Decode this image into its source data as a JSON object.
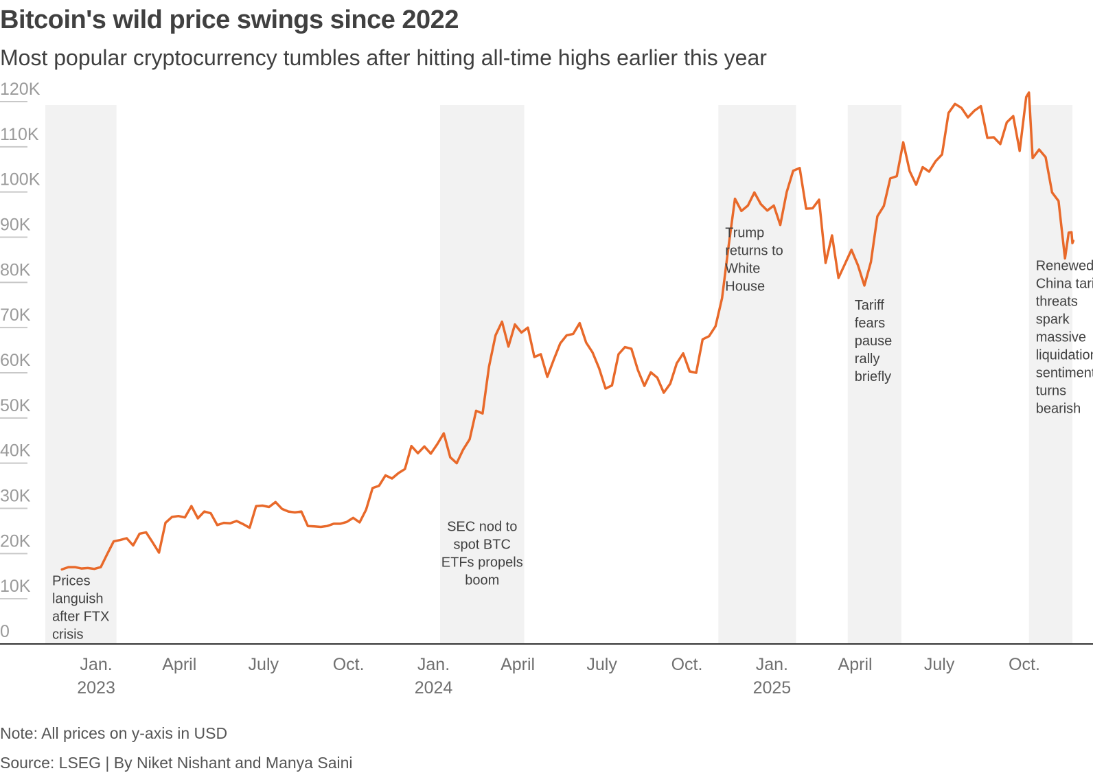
{
  "title": "Bitcoin's wild price swings since 2022",
  "subtitle": "Most popular cryptocurrency tumbles after hitting all-time highs earlier this year",
  "note": "Note: All prices on y-axis in USD",
  "source": "Source: LSEG  | By Niket Nishant and Manya Saini",
  "colors": {
    "line": "#e8692a",
    "band": "#f2f2f2",
    "axis": "#333333",
    "grid_tick": "#c8c8c8"
  },
  "chart_data": {
    "type": "line",
    "title": "Bitcoin's wild price swings since 2022",
    "xlabel": "",
    "ylabel": "",
    "ylim": [
      0,
      120000
    ],
    "xlim": [
      "2022-11-07",
      "2025-11-22"
    ],
    "y_ticks": [
      "0",
      "10K",
      "20K",
      "30K",
      "40K",
      "50K",
      "60K",
      "70K",
      "80K",
      "90K",
      "100K",
      "110K",
      "120K"
    ],
    "y_tick_values": [
      0,
      10000,
      20000,
      30000,
      40000,
      50000,
      60000,
      70000,
      80000,
      90000,
      100000,
      110000,
      120000
    ],
    "x_ticks": [
      {
        "date": "2023-01-01",
        "label": "Jan.",
        "year": "2023"
      },
      {
        "date": "2023-04-01",
        "label": "April",
        "year": ""
      },
      {
        "date": "2023-07-01",
        "label": "July",
        "year": ""
      },
      {
        "date": "2023-10-01",
        "label": "Oct.",
        "year": ""
      },
      {
        "date": "2024-01-01",
        "label": "Jan.",
        "year": "2024"
      },
      {
        "date": "2024-04-01",
        "label": "April",
        "year": ""
      },
      {
        "date": "2024-07-01",
        "label": "July",
        "year": ""
      },
      {
        "date": "2024-10-01",
        "label": "Oct.",
        "year": ""
      },
      {
        "date": "2025-01-01",
        "label": "Jan.",
        "year": "2025"
      },
      {
        "date": "2025-04-01",
        "label": "April",
        "year": ""
      },
      {
        "date": "2025-07-01",
        "label": "July",
        "year": ""
      },
      {
        "date": "2025-10-01",
        "label": "Oct.",
        "year": ""
      }
    ],
    "bands": [
      {
        "start": "2022-11-07",
        "end": "2023-01-23",
        "annotation": [
          "Prices",
          "languish",
          "after FTX",
          "crisis"
        ],
        "align": "start",
        "text_top_value": 13000
      },
      {
        "start": "2024-01-08",
        "end": "2024-04-08",
        "annotation": [
          "SEC nod to",
          "spot BTC",
          "ETFs propels",
          "boom"
        ],
        "align": "middle",
        "text_top_value": 25000
      },
      {
        "start": "2024-11-04",
        "end": "2025-01-27",
        "annotation": [
          "Trump",
          "returns to",
          "White",
          "House"
        ],
        "align": "start",
        "text_top_value": 90000
      },
      {
        "start": "2025-03-24",
        "end": "2025-05-21",
        "annotation": [
          "Tariff",
          "fears",
          "pause",
          "rally",
          "briefly"
        ],
        "align": "start",
        "text_top_value": 74000
      },
      {
        "start": "2025-10-06",
        "end": "2025-11-22",
        "annotation": [
          "Renewed",
          "China tariff",
          "threats",
          "spark",
          "massive",
          "liquidation,",
          "sentiment",
          "turns",
          "bearish"
        ],
        "align": "start",
        "text_top_value": 82700
      }
    ],
    "series": [
      {
        "points": [
          [
            "2022-11-25",
            16500
          ],
          [
            "2022-12-02",
            17000
          ],
          [
            "2022-12-09",
            17000
          ],
          [
            "2022-12-16",
            16700
          ],
          [
            "2022-12-23",
            16800
          ],
          [
            "2022-12-30",
            16600
          ],
          [
            "2023-01-06",
            17000
          ],
          [
            "2023-01-13",
            19900
          ],
          [
            "2023-01-20",
            22700
          ],
          [
            "2023-01-27",
            23000
          ],
          [
            "2023-02-03",
            23400
          ],
          [
            "2023-02-10",
            21800
          ],
          [
            "2023-02-17",
            24400
          ],
          [
            "2023-02-24",
            24700
          ],
          [
            "2023-03-03",
            22500
          ],
          [
            "2023-03-10",
            20200
          ],
          [
            "2023-03-17",
            26800
          ],
          [
            "2023-03-24",
            28100
          ],
          [
            "2023-03-31",
            28300
          ],
          [
            "2023-04-07",
            28000
          ],
          [
            "2023-04-14",
            30500
          ],
          [
            "2023-04-21",
            27800
          ],
          [
            "2023-04-28",
            29300
          ],
          [
            "2023-05-05",
            28900
          ],
          [
            "2023-05-12",
            26300
          ],
          [
            "2023-05-19",
            26800
          ],
          [
            "2023-05-26",
            26700
          ],
          [
            "2023-06-02",
            27200
          ],
          [
            "2023-06-09",
            26500
          ],
          [
            "2023-06-16",
            25700
          ],
          [
            "2023-06-23",
            30500
          ],
          [
            "2023-06-30",
            30600
          ],
          [
            "2023-07-07",
            30300
          ],
          [
            "2023-07-14",
            31400
          ],
          [
            "2023-07-21",
            29900
          ],
          [
            "2023-07-28",
            29300
          ],
          [
            "2023-08-04",
            29100
          ],
          [
            "2023-08-11",
            29300
          ],
          [
            "2023-08-18",
            26100
          ],
          [
            "2023-08-25",
            26000
          ],
          [
            "2023-09-01",
            25900
          ],
          [
            "2023-09-08",
            26100
          ],
          [
            "2023-09-15",
            26600
          ],
          [
            "2023-09-22",
            26600
          ],
          [
            "2023-09-29",
            27000
          ],
          [
            "2023-10-06",
            27900
          ],
          [
            "2023-10-13",
            26900
          ],
          [
            "2023-10-20",
            29700
          ],
          [
            "2023-10-27",
            34500
          ],
          [
            "2023-11-03",
            35000
          ],
          [
            "2023-11-10",
            37300
          ],
          [
            "2023-11-17",
            36600
          ],
          [
            "2023-11-24",
            37800
          ],
          [
            "2023-12-01",
            38700
          ],
          [
            "2023-12-08",
            43800
          ],
          [
            "2023-12-15",
            42200
          ],
          [
            "2023-12-22",
            43700
          ],
          [
            "2023-12-29",
            42100
          ],
          [
            "2024-01-05",
            44200
          ],
          [
            "2024-01-12",
            46600
          ],
          [
            "2024-01-19",
            41300
          ],
          [
            "2024-01-26",
            40000
          ],
          [
            "2024-02-02",
            43000
          ],
          [
            "2024-02-09",
            45300
          ],
          [
            "2024-02-16",
            51600
          ],
          [
            "2024-02-23",
            51000
          ],
          [
            "2024-03-01",
            61400
          ],
          [
            "2024-03-08",
            68300
          ],
          [
            "2024-03-15",
            71300
          ],
          [
            "2024-03-22",
            65800
          ],
          [
            "2024-03-29",
            70700
          ],
          [
            "2024-04-05",
            68900
          ],
          [
            "2024-04-12",
            70000
          ],
          [
            "2024-04-19",
            63500
          ],
          [
            "2024-04-26",
            64100
          ],
          [
            "2024-05-03",
            59100
          ],
          [
            "2024-05-10",
            62900
          ],
          [
            "2024-05-17",
            66500
          ],
          [
            "2024-05-24",
            68300
          ],
          [
            "2024-05-31",
            68600
          ],
          [
            "2024-06-07",
            71000
          ],
          [
            "2024-06-14",
            66700
          ],
          [
            "2024-06-21",
            64500
          ],
          [
            "2024-06-28",
            61000
          ],
          [
            "2024-07-05",
            56500
          ],
          [
            "2024-07-12",
            57200
          ],
          [
            "2024-07-19",
            64100
          ],
          [
            "2024-07-26",
            65700
          ],
          [
            "2024-08-02",
            65300
          ],
          [
            "2024-08-09",
            60600
          ],
          [
            "2024-08-16",
            57100
          ],
          [
            "2024-08-23",
            60100
          ],
          [
            "2024-08-30",
            58900
          ],
          [
            "2024-09-06",
            55600
          ],
          [
            "2024-09-13",
            57600
          ],
          [
            "2024-09-20",
            62100
          ],
          [
            "2024-09-27",
            64300
          ],
          [
            "2024-10-04",
            60300
          ],
          [
            "2024-10-11",
            60000
          ],
          [
            "2024-10-18",
            67400
          ],
          [
            "2024-10-25",
            68100
          ],
          [
            "2024-11-01",
            70300
          ],
          [
            "2024-11-08",
            76500
          ],
          [
            "2024-11-15",
            87900
          ],
          [
            "2024-11-22",
            98500
          ],
          [
            "2024-11-29",
            95800
          ],
          [
            "2024-12-06",
            97000
          ],
          [
            "2024-12-13",
            99900
          ],
          [
            "2024-12-20",
            97300
          ],
          [
            "2024-12-27",
            95900
          ],
          [
            "2025-01-03",
            97000
          ],
          [
            "2025-01-10",
            92700
          ],
          [
            "2025-01-17",
            100000
          ],
          [
            "2025-01-24",
            104700
          ],
          [
            "2025-01-31",
            105300
          ],
          [
            "2025-02-07",
            96300
          ],
          [
            "2025-02-14",
            96400
          ],
          [
            "2025-02-21",
            98300
          ],
          [
            "2025-02-28",
            84300
          ],
          [
            "2025-03-07",
            90400
          ],
          [
            "2025-03-14",
            81000
          ],
          [
            "2025-03-21",
            84100
          ],
          [
            "2025-03-28",
            87200
          ],
          [
            "2025-04-04",
            83800
          ],
          [
            "2025-04-11",
            79300
          ],
          [
            "2025-04-18",
            84500
          ],
          [
            "2025-04-25",
            94600
          ],
          [
            "2025-05-02",
            96900
          ],
          [
            "2025-05-09",
            103000
          ],
          [
            "2025-05-16",
            103500
          ],
          [
            "2025-05-23",
            111000
          ],
          [
            "2025-05-30",
            104600
          ],
          [
            "2025-06-06",
            101600
          ],
          [
            "2025-06-13",
            105500
          ],
          [
            "2025-06-20",
            104500
          ],
          [
            "2025-06-27",
            106800
          ],
          [
            "2025-07-04",
            108300
          ],
          [
            "2025-07-11",
            117500
          ],
          [
            "2025-07-18",
            119500
          ],
          [
            "2025-07-25",
            118600
          ],
          [
            "2025-08-01",
            116500
          ],
          [
            "2025-08-08",
            118000
          ],
          [
            "2025-08-15",
            119000
          ],
          [
            "2025-08-22",
            112000
          ],
          [
            "2025-08-29",
            112100
          ],
          [
            "2025-09-05",
            110600
          ],
          [
            "2025-09-12",
            115400
          ],
          [
            "2025-09-19",
            116800
          ],
          [
            "2025-09-26",
            109100
          ],
          [
            "2025-10-03",
            121000
          ],
          [
            "2025-10-06",
            122000
          ],
          [
            "2025-10-10",
            107500
          ],
          [
            "2025-10-17",
            109400
          ],
          [
            "2025-10-24",
            107700
          ],
          [
            "2025-10-31",
            99900
          ],
          [
            "2025-11-07",
            98000
          ],
          [
            "2025-11-14",
            85300
          ],
          [
            "2025-11-18",
            91000
          ],
          [
            "2025-11-21",
            91100
          ],
          [
            "2025-11-22",
            88700
          ],
          [
            "2025-11-23",
            89200
          ]
        ]
      }
    ]
  }
}
